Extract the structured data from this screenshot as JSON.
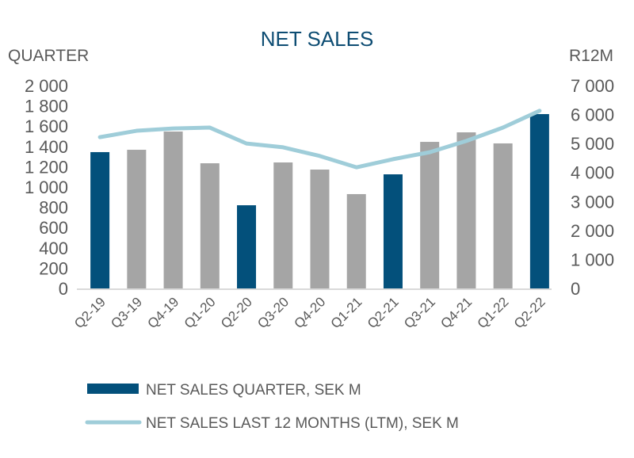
{
  "chart_data": {
    "type": "bar",
    "title": "NET SALES",
    "y_left_label": "QUARTER",
    "y_right_label": "R12M",
    "categories": [
      "Q2-19",
      "Q3-19",
      "Q4-19",
      "Q1-20",
      "Q2-20",
      "Q3-20",
      "Q4-20",
      "Q1-21",
      "Q2-21",
      "Q3-21",
      "Q4-21",
      "Q1-22",
      "Q2-22"
    ],
    "series": [
      {
        "name": "NET SALES QUARTER, SEK M",
        "type": "bar",
        "axis": "left",
        "values": [
          1344,
          1367,
          1547,
          1234,
          820,
          1242,
          1172,
          930,
          1125,
          1445,
          1539,
          1430,
          1719
        ],
        "highlight": [
          true,
          false,
          false,
          false,
          true,
          false,
          false,
          false,
          true,
          false,
          false,
          false,
          true
        ]
      },
      {
        "name": "NET SALES LAST 12 MONTHS (LTM), SEK M",
        "type": "line",
        "axis": "right",
        "values": [
          5220,
          5440,
          5520,
          5550,
          5000,
          4870,
          4570,
          4180,
          4460,
          4700,
          5090,
          5550,
          6130
        ]
      }
    ],
    "y_left": {
      "min": 0,
      "max": 2000,
      "step": 200,
      "ticks": [
        "0",
        "200",
        "400",
        "600",
        "800",
        "1 000",
        "1 200",
        "1 400",
        "1 600",
        "1 800",
        "2 000"
      ]
    },
    "y_right": {
      "min": 0,
      "max": 7000,
      "step": 1000,
      "ticks": [
        "0",
        "1 000",
        "2 000",
        "3 000",
        "4 000",
        "5 000",
        "6 000",
        "7 000"
      ]
    },
    "grid": false,
    "legend_position": "bottom",
    "colors": {
      "highlight_bar": "#03507b",
      "regular_bar": "#a5a5a5",
      "line": "#9fcdd9",
      "title": "#0e4d73",
      "text": "#595959",
      "axis": "#d9d9d9"
    }
  }
}
